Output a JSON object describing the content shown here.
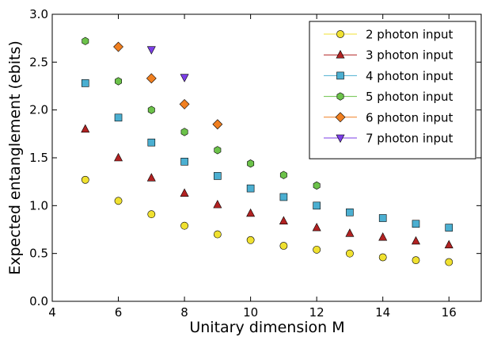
{
  "chart_data": {
    "type": "scatter",
    "title": "",
    "xlabel": "Unitary dimension M",
    "ylabel": "Expected entanglement (ebits)",
    "xlim": [
      4,
      17
    ],
    "ylim": [
      0.0,
      3.0
    ],
    "xticks": [
      4,
      6,
      8,
      10,
      12,
      14,
      16
    ],
    "xtick_labels": [
      "4",
      "6",
      "8",
      "10",
      "12",
      "14",
      "16"
    ],
    "yticks": [
      0.0,
      0.5,
      1.0,
      1.5,
      2.0,
      2.5,
      3.0
    ],
    "ytick_labels": [
      "0.0",
      "0.5",
      "1.0",
      "1.5",
      "2.0",
      "2.5",
      "3.0"
    ],
    "grid": false,
    "legend_position": "top-right",
    "series": [
      {
        "name": "2 photon input",
        "marker": "circle",
        "color": "#f0e130",
        "x": [
          5,
          6,
          7,
          8,
          9,
          10,
          11,
          12,
          13,
          14,
          15,
          16
        ],
        "y": [
          1.27,
          1.05,
          0.91,
          0.79,
          0.7,
          0.64,
          0.58,
          0.54,
          0.5,
          0.46,
          0.43,
          0.41
        ]
      },
      {
        "name": "3 photon input",
        "marker": "triangle-up",
        "color": "#b22222",
        "x": [
          5,
          6,
          7,
          8,
          9,
          10,
          11,
          12,
          13,
          14,
          15,
          16
        ],
        "y": [
          1.8,
          1.5,
          1.29,
          1.13,
          1.01,
          0.92,
          0.84,
          0.77,
          0.71,
          0.67,
          0.63,
          0.59
        ]
      },
      {
        "name": "4 photon input",
        "marker": "square",
        "color": "#4bafd1",
        "x": [
          5,
          6,
          7,
          8,
          9,
          10,
          11,
          12,
          13,
          14,
          15,
          16
        ],
        "y": [
          2.28,
          1.92,
          1.66,
          1.46,
          1.31,
          1.18,
          1.09,
          1.0,
          0.93,
          0.87,
          0.81,
          0.77
        ]
      },
      {
        "name": "5 photon input",
        "marker": "hexagon",
        "color": "#6cc24a",
        "x": [
          5,
          6,
          7,
          8,
          9,
          10,
          11,
          12
        ],
        "y": [
          2.72,
          2.3,
          2.0,
          1.77,
          1.58,
          1.44,
          1.32,
          1.21
        ]
      },
      {
        "name": "6 photon input",
        "marker": "diamond",
        "color": "#f07f20",
        "x": [
          6,
          7,
          8,
          9
        ],
        "y": [
          2.66,
          2.33,
          2.06,
          1.85
        ]
      },
      {
        "name": "7 photon input",
        "marker": "triangle-down",
        "color": "#7b3ee6",
        "x": [
          7,
          8
        ],
        "y": [
          2.63,
          2.34
        ]
      }
    ]
  }
}
